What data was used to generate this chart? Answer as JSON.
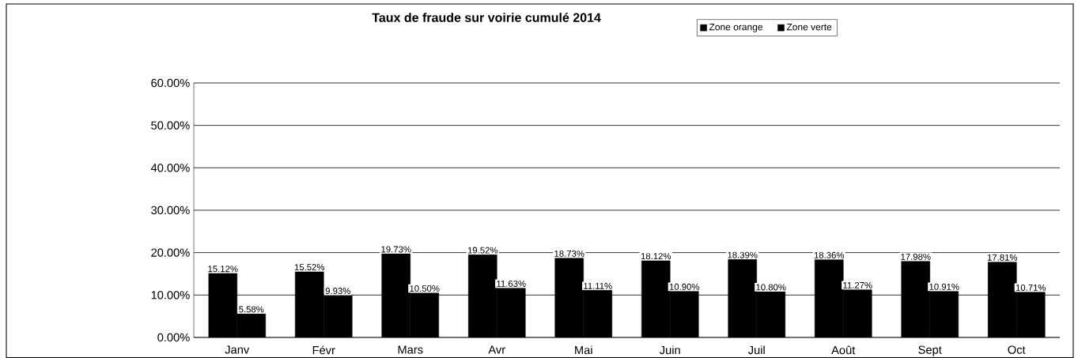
{
  "chart_data": {
    "type": "bar",
    "title": "Taux de fraude sur voirie cumulé 2014",
    "categories": [
      "Janv",
      "Févr",
      "Mars",
      "Avr",
      "Mai",
      "Juin",
      "Juil",
      "Août",
      "Sept",
      "Oct"
    ],
    "series": [
      {
        "name": "Zone orange",
        "color": "#000000",
        "values": [
          15.12,
          15.52,
          19.73,
          19.52,
          18.73,
          18.12,
          18.39,
          18.36,
          17.98,
          17.81
        ],
        "value_labels": [
          "15.12%",
          "15.52%",
          "19.73%",
          "19.52%",
          "18.73%",
          "18.12%",
          "18.39%",
          "18.36%",
          "17.98%",
          "17.81%"
        ]
      },
      {
        "name": "Zone verte",
        "color": "#000000",
        "values": [
          5.58,
          9.93,
          10.5,
          11.63,
          11.11,
          10.9,
          10.8,
          11.27,
          10.91,
          10.71
        ],
        "value_labels": [
          "5.58%",
          "9.93%",
          "10.50%",
          "11.63%",
          "11.11%",
          "10.90%",
          "10.80%",
          "11.27%",
          "10.91%",
          "10.71%"
        ]
      }
    ],
    "ylim": [
      0,
      60
    ],
    "yticks": [
      {
        "value": 0,
        "label": "0.00%"
      },
      {
        "value": 10,
        "label": "10.00%"
      },
      {
        "value": 20,
        "label": "20.00%"
      },
      {
        "value": 30,
        "label": "30.00%"
      },
      {
        "value": 40,
        "label": "40.00%"
      },
      {
        "value": 50,
        "label": "50.00%"
      },
      {
        "value": 60,
        "label": "60.00%"
      }
    ],
    "grid": "y",
    "legend": "top"
  }
}
